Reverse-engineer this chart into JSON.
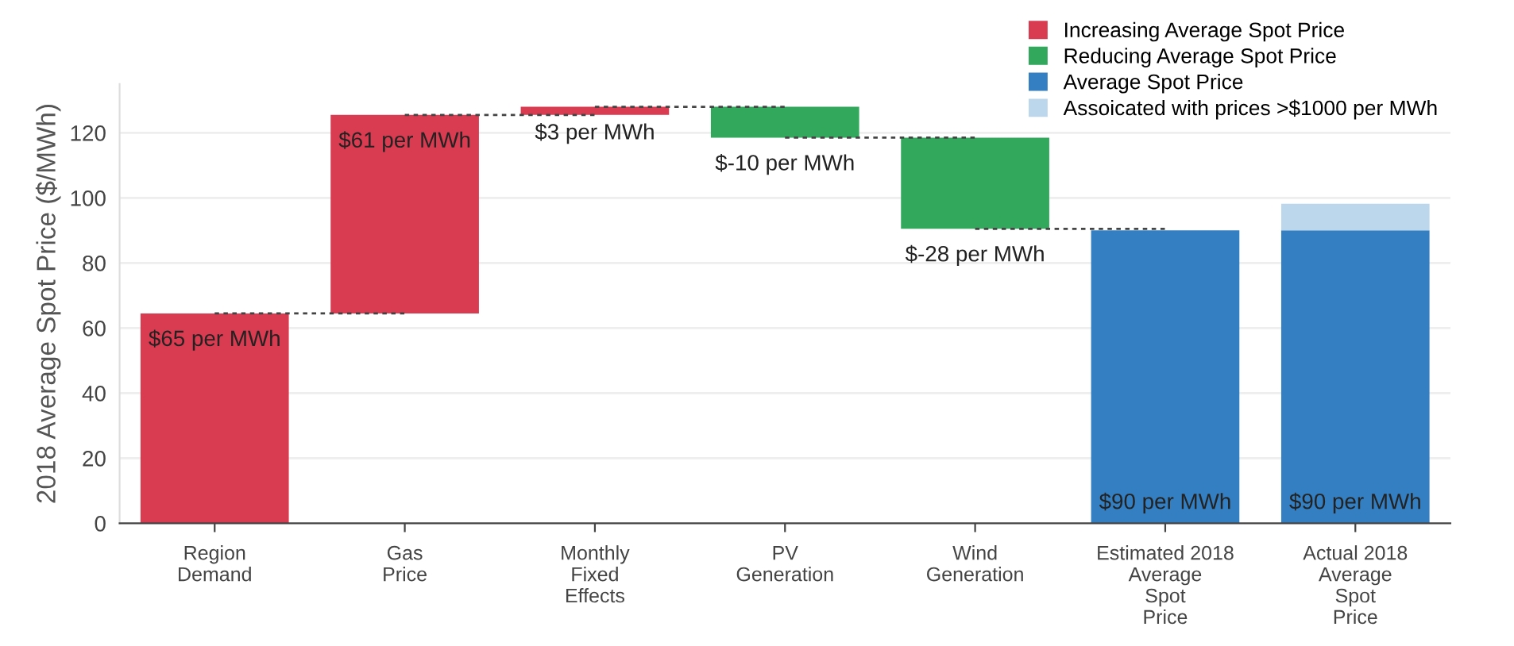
{
  "chart_data": {
    "type": "bar",
    "ylabel": "2018 Average Spot Price ($/MWh)",
    "categories": [
      "Region\nDemand",
      "Gas\nPrice",
      "Monthly\nFixed\nEffects",
      "PV\nGeneration",
      "Wind\nGeneration",
      "Estimated 2018\nAverage\nSpot\nPrice",
      "Actual 2018\nAverage\nSpot\nPrice"
    ],
    "series": [
      {
        "name": "Increasing Average Spot Price",
        "color": "#d93b50",
        "values": [
          64.5,
          61,
          2.5,
          null,
          null,
          null,
          null
        ],
        "base": [
          0,
          64.5,
          125.5,
          null,
          null,
          null,
          null
        ],
        "value_labels": [
          "$65 per MWh",
          "$61 per MWh",
          "$3 per MWh",
          null,
          null,
          null,
          null
        ]
      },
      {
        "name": "Reducing Average Spot Price",
        "color": "#32a85c",
        "values": [
          null,
          null,
          null,
          -9.5,
          -28,
          null,
          null
        ],
        "base": [
          null,
          null,
          null,
          128,
          118.5,
          null,
          null
        ],
        "value_labels": [
          null,
          null,
          null,
          "$-10 per MWh",
          "$-28 per MWh",
          null,
          null
        ]
      },
      {
        "name": "Average Spot Price",
        "color": "#347fc1",
        "values": [
          null,
          null,
          null,
          null,
          null,
          90,
          90
        ],
        "base": [
          null,
          null,
          null,
          null,
          null,
          0,
          0
        ],
        "value_labels": [
          null,
          null,
          null,
          null,
          null,
          "$90 per MWh",
          "$90 per MWh"
        ]
      },
      {
        "name": "Assoicated with prices >$1000 per MWh",
        "color": "#bcd6ec",
        "values": [
          null,
          null,
          null,
          null,
          null,
          null,
          8.2
        ],
        "base": [
          null,
          null,
          null,
          null,
          null,
          null,
          90
        ],
        "value_labels": [
          null,
          null,
          null,
          null,
          null,
          null,
          null
        ]
      }
    ],
    "ylim": [
      0,
      135
    ],
    "yticks": [
      0,
      20,
      40,
      60,
      80,
      100,
      120
    ],
    "grid": "y",
    "legend": "top right"
  }
}
